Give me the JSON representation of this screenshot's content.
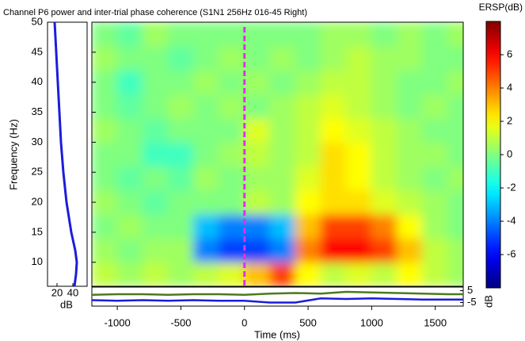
{
  "chart_data": [
    {
      "type": "heatmap",
      "title": "Channel P6 power and inter-trial phase coherence (S1N1 256Hz 016-45 Right)",
      "xlabel": "Time (ms)",
      "ylabel": "Frequency (Hz)",
      "x": [
        -1100,
        -900,
        -700,
        -500,
        -300,
        -100,
        100,
        300,
        500,
        700,
        900,
        1100,
        1300,
        1500,
        1700
      ],
      "y": [
        8,
        12,
        16,
        20,
        24,
        28,
        32,
        36,
        40,
        44,
        48
      ],
      "z": [
        [
          1,
          0.5,
          1,
          0.5,
          1,
          1.5,
          3,
          5,
          2,
          1,
          1.5,
          1,
          2,
          1,
          0.5
        ],
        [
          0.5,
          0,
          0.5,
          0.5,
          -4,
          -5,
          -5,
          -4,
          4,
          6,
          6,
          5,
          3,
          1,
          0.5
        ],
        [
          0,
          0.5,
          0,
          0,
          -3,
          -4,
          -4,
          -3,
          3,
          5,
          5,
          4,
          2,
          0.5,
          0
        ],
        [
          0.5,
          0,
          -0.5,
          0,
          0,
          0,
          1,
          0.5,
          2,
          2.5,
          2.5,
          1.5,
          1,
          0.5,
          0
        ],
        [
          0,
          -0.5,
          0,
          -0.5,
          0.5,
          0,
          0.5,
          0.5,
          1.5,
          2.5,
          2,
          1,
          0.5,
          0,
          0.5
        ],
        [
          0,
          0,
          -1,
          -1,
          0,
          0.5,
          1,
          0.5,
          1,
          2.5,
          2,
          1,
          0.5,
          0.5,
          0
        ],
        [
          0.5,
          0,
          -0.5,
          0,
          0,
          0,
          1.5,
          0.5,
          1,
          2,
          1.5,
          1,
          0.5,
          0,
          0
        ],
        [
          0,
          -0.5,
          0,
          0.5,
          0,
          0.5,
          0,
          0.5,
          1,
          1.5,
          1,
          0.5,
          0,
          0.5,
          0
        ],
        [
          0,
          -1,
          0,
          0,
          0.5,
          0,
          0.5,
          0,
          0.5,
          1,
          1,
          0.5,
          0,
          0,
          0.5
        ],
        [
          0.5,
          0,
          0,
          -0.5,
          0,
          0.5,
          0,
          0.5,
          0,
          0.5,
          1,
          0.5,
          0.5,
          0,
          0
        ],
        [
          0,
          -0.5,
          0.5,
          0,
          0,
          0,
          0,
          0,
          0,
          0.5,
          0.5,
          0,
          0.5,
          0,
          0.5
        ]
      ],
      "xlim": [
        -1200,
        1720
      ],
      "ylim": [
        6,
        50
      ],
      "xticks": [
        -1000,
        -500,
        0,
        500,
        1000,
        1500
      ],
      "yticks": [
        10,
        15,
        20,
        25,
        30,
        35,
        40,
        45,
        50
      ],
      "colormap": "jet",
      "clim": [
        -8,
        8
      ],
      "cticks": [
        6,
        4,
        2,
        0,
        -2,
        -4,
        -6
      ],
      "colorbar_label": "ERSP(dB)",
      "event_times": [
        0
      ],
      "event_color": "#e030e8"
    },
    {
      "type": "line",
      "orientation": "vertical",
      "xlabel": "dB",
      "y": [
        6,
        8,
        10,
        12,
        15,
        20,
        25,
        30,
        35,
        40,
        45,
        50
      ],
      "series": [
        {
          "color": "#1c1cdc",
          "values": [
            42,
            44,
            45,
            43,
            38,
            32,
            28,
            25,
            23,
            21,
            19,
            17
          ]
        }
      ],
      "xlim": [
        8,
        58
      ],
      "xticks": [
        20,
        40
      ]
    },
    {
      "type": "line",
      "ylabel": "dB",
      "x": [
        -1200,
        -1000,
        -800,
        -600,
        -400,
        -200,
        0,
        200,
        400,
        600,
        800,
        1000,
        1200,
        1400,
        1600,
        1720
      ],
      "series": [
        {
          "color": "#4c7a1c",
          "values": [
            1.5,
            2,
            2,
            1.5,
            2,
            2,
            1.5,
            2.5,
            3,
            2.5,
            4,
            3.5,
            3,
            2.5,
            2,
            2
          ]
        },
        {
          "color": "#1c1cdc",
          "values": [
            -3,
            -3.5,
            -3,
            -3.5,
            -3,
            -3.5,
            -3.5,
            -5,
            -5,
            -1.5,
            -2,
            -1.5,
            -2,
            -2.5,
            -2.5,
            -2.5
          ]
        }
      ],
      "ylim": [
        -8,
        8
      ],
      "yticks": [
        5,
        -5
      ]
    }
  ]
}
